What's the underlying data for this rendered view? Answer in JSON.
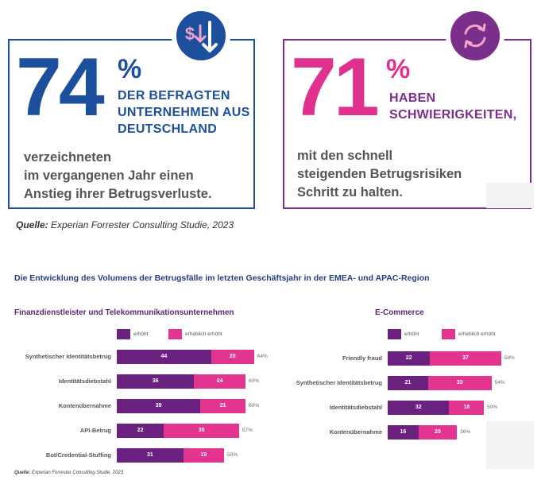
{
  "colors": {
    "blue": "#1c4f9c",
    "purple": "#7a2f8a",
    "magenta": "#e0318f",
    "bar_dark": "#6b2180",
    "bar_light": "#e3358f"
  },
  "stat1": {
    "number": "74",
    "percent": "%",
    "headline": [
      "DER BEFRAGTEN",
      "UNTERNEHMEN AUS",
      "DEUTSCHLAND"
    ],
    "text": [
      "verzeichneten",
      "im vergangenen Jahr einen",
      "Anstieg ihrer Betrugsverluste."
    ],
    "icon": "dollar-down-arrow-icon"
  },
  "stat2": {
    "number": "71",
    "percent": "%",
    "headline": [
      "HABEN",
      "SCHWIERIGKEITEN,"
    ],
    "text": [
      "mit den schnell",
      "steigenden Betrugsrisiken",
      "Schritt zu halten."
    ],
    "icon": "refresh-cycle-icon"
  },
  "source1": {
    "label": "Quelle:",
    "text": " Experian Forrester Consulting Studie, 2023"
  },
  "section_title": "Die Entwicklung des Volumens der Betrugsfälle im letzten Geschäftsjahr in der EMEA- und APAC-Region",
  "chart_data": [
    {
      "type": "bar",
      "orientation": "horizontal",
      "stacked": true,
      "title": "Finanzdienstleister und Telekommunikationsunternehmen",
      "categories": [
        "Synthetischer Identitätsbetrug",
        "Identitätsdiebstahl",
        "Kontenübernahme",
        "API-Betrug",
        "Bot/Credential-Stuffing"
      ],
      "series": [
        {
          "name": "erhöht",
          "values": [
            44,
            36,
            39,
            22,
            31
          ]
        },
        {
          "name": "erheblich erhöht",
          "values": [
            20,
            24,
            21,
            35,
            19
          ]
        }
      ],
      "totals": [
        "64%",
        "60%",
        "60%",
        "57%",
        "50%"
      ],
      "legend": "top"
    },
    {
      "type": "bar",
      "orientation": "horizontal",
      "stacked": true,
      "title": "E-Commerce",
      "categories": [
        "Friendly fraud",
        "Synthetischer Identitätsbetrug",
        "Identitätsdiebstahl",
        "Kontenübernahme"
      ],
      "series": [
        {
          "name": "erhöht",
          "values": [
            22,
            21,
            32,
            16
          ]
        },
        {
          "name": "erheblich erhöht",
          "values": [
            37,
            33,
            18,
            20
          ]
        }
      ],
      "totals": [
        "59%",
        "54%",
        "50%",
        "36%"
      ],
      "legend": "top"
    }
  ],
  "source2": {
    "label": "Quelle:",
    "text": " Experian Forrester Consulting Studie, 2023"
  }
}
